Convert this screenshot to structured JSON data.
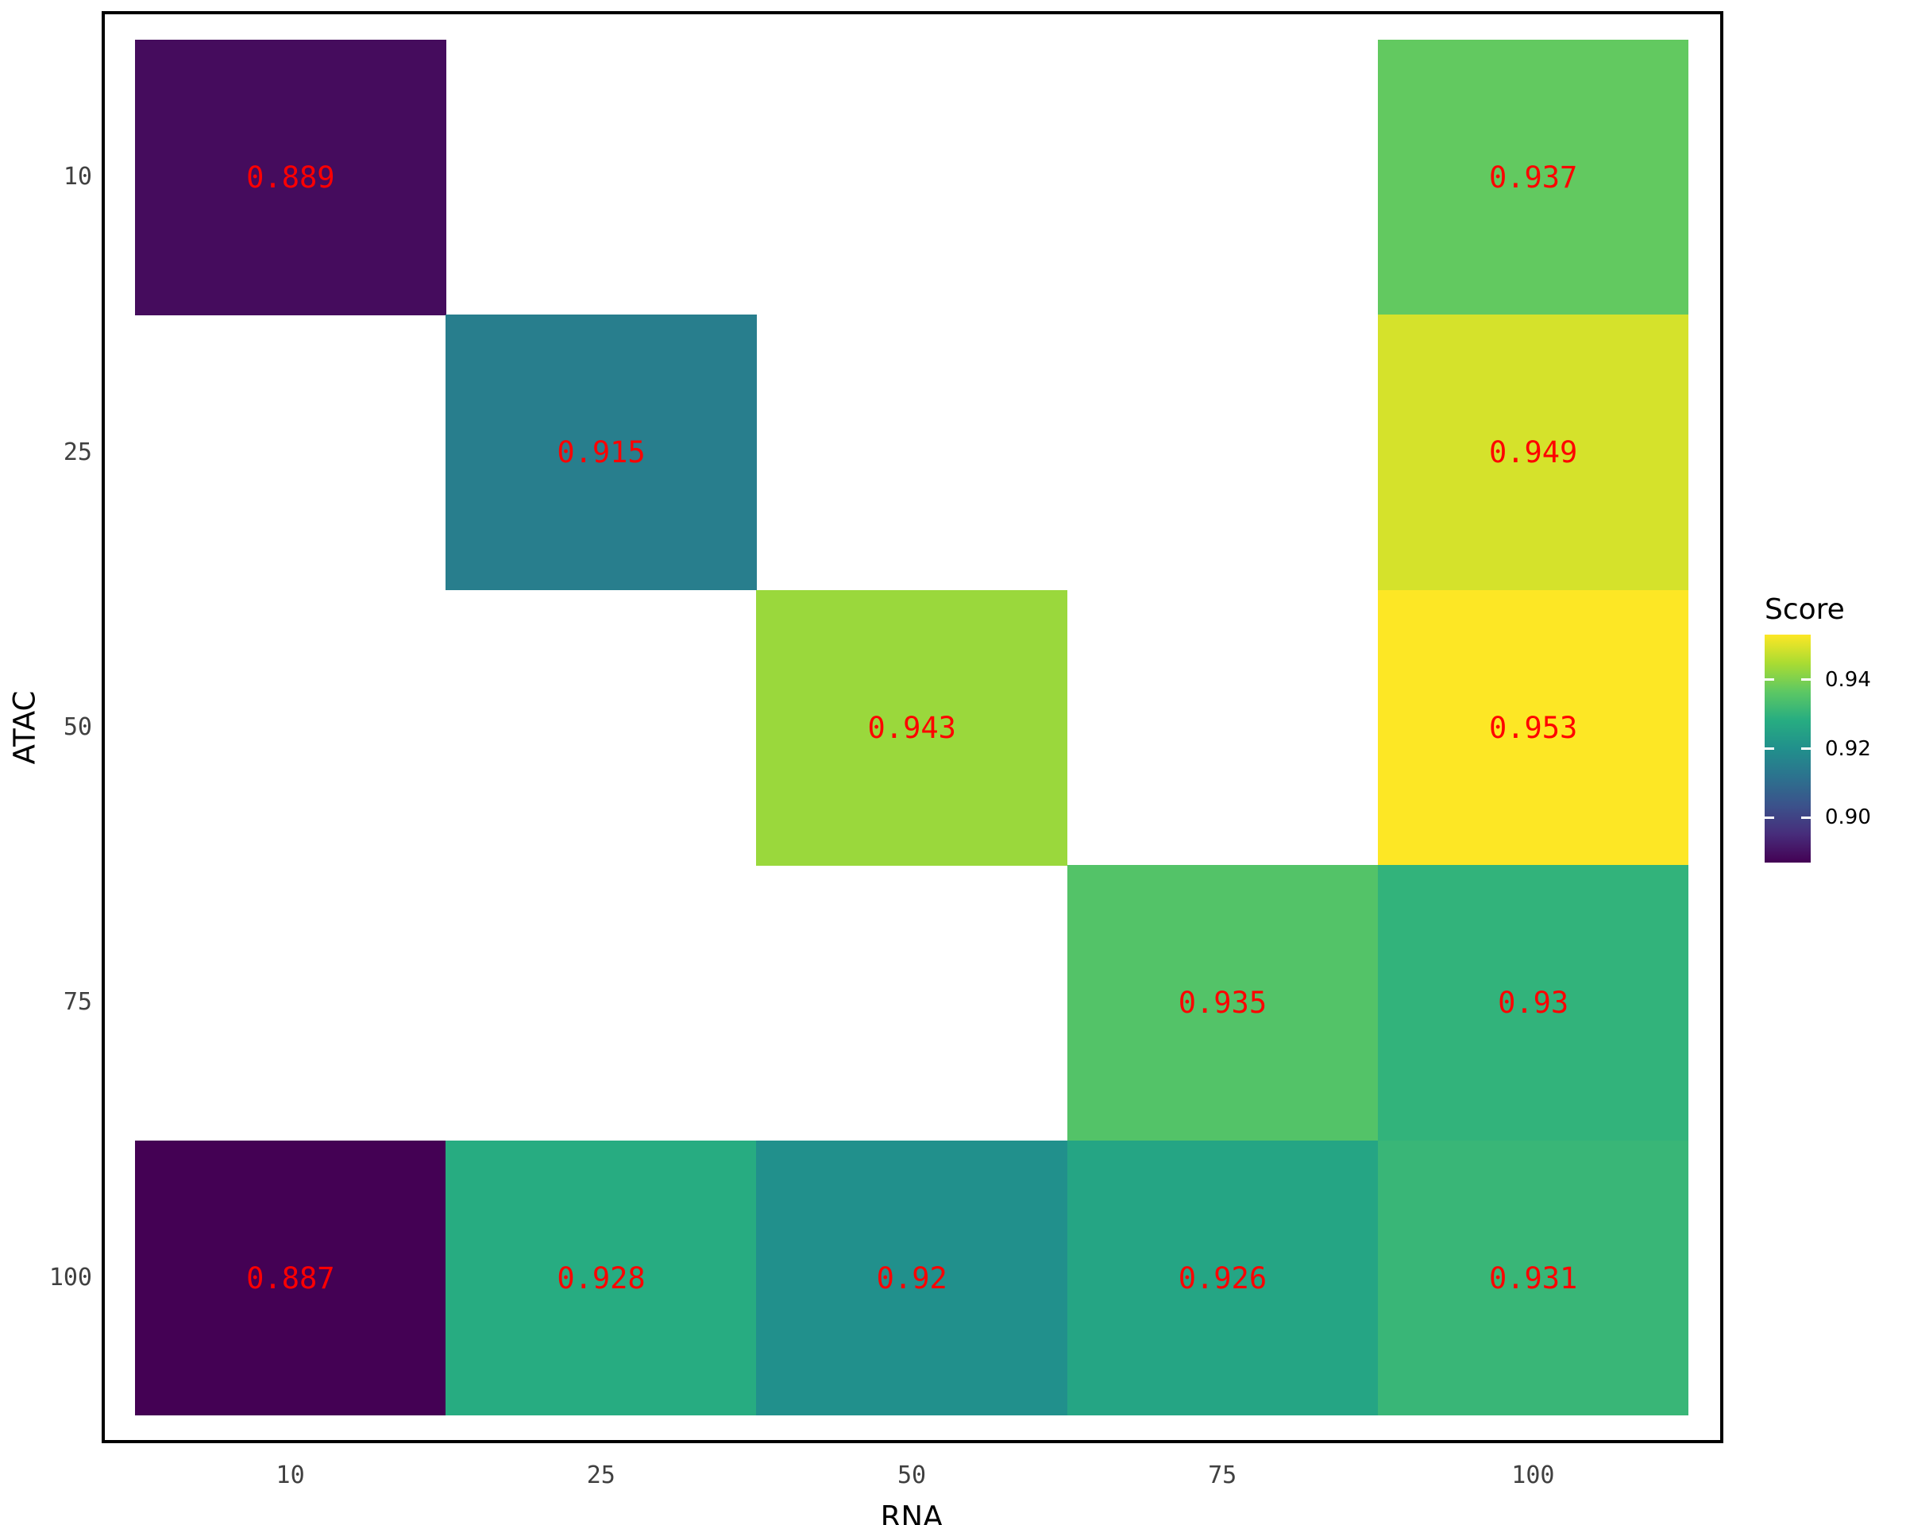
{
  "chart_data": {
    "type": "heatmap",
    "title": "",
    "xlabel": "RNA",
    "ylabel": "ATAC",
    "x_categories": [
      "10",
      "25",
      "50",
      "75",
      "100"
    ],
    "y_categories": [
      "10",
      "25",
      "50",
      "75",
      "100"
    ],
    "cells": [
      {
        "rna": "10",
        "atac": "10",
        "value": 0.889,
        "label": "0.889"
      },
      {
        "rna": "100",
        "atac": "10",
        "value": 0.937,
        "label": "0.937"
      },
      {
        "rna": "25",
        "atac": "25",
        "value": 0.915,
        "label": "0.915"
      },
      {
        "rna": "100",
        "atac": "25",
        "value": 0.949,
        "label": "0.949"
      },
      {
        "rna": "50",
        "atac": "50",
        "value": 0.943,
        "label": "0.943"
      },
      {
        "rna": "100",
        "atac": "50",
        "value": 0.953,
        "label": "0.953"
      },
      {
        "rna": "75",
        "atac": "75",
        "value": 0.935,
        "label": "0.935"
      },
      {
        "rna": "100",
        "atac": "75",
        "value": 0.93,
        "label": "0.93"
      },
      {
        "rna": "10",
        "atac": "100",
        "value": 0.887,
        "label": "0.887"
      },
      {
        "rna": "25",
        "atac": "100",
        "value": 0.928,
        "label": "0.928"
      },
      {
        "rna": "50",
        "atac": "100",
        "value": 0.92,
        "label": "0.92"
      },
      {
        "rna": "75",
        "atac": "100",
        "value": 0.926,
        "label": "0.926"
      },
      {
        "rna": "100",
        "atac": "100",
        "value": 0.931,
        "label": "0.931"
      }
    ],
    "value_range": {
      "min": 0.887,
      "max": 0.953
    },
    "legend": {
      "title": "Score",
      "position": "right",
      "ticks": [
        {
          "value": 0.94,
          "label": "0.94"
        },
        {
          "value": 0.92,
          "label": "0.92"
        },
        {
          "value": 0.9,
          "label": "0.90"
        }
      ]
    },
    "grid": "off",
    "colors": {
      "colormap_name": "viridis",
      "colormap_anchors": [
        "#440154",
        "#472d7b",
        "#3b528b",
        "#2c728e",
        "#21908c",
        "#27ad81",
        "#5dc863",
        "#aadc32",
        "#fde725"
      ],
      "cell_label": "#ff0000",
      "axis_tick_label": "#404040",
      "axis_title": "#000000",
      "panel_border": "#000000",
      "background": "#ffffff",
      "legend_tick_mark": "#ffffff"
    }
  }
}
